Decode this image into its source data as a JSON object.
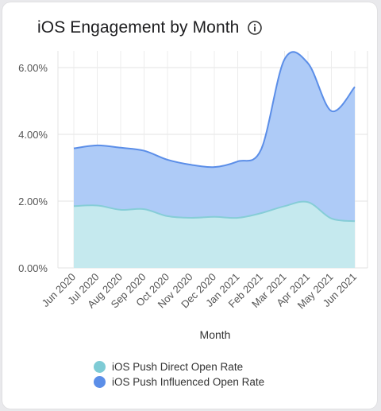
{
  "title": "iOS Engagement by Month",
  "icons": {
    "info": "info-icon"
  },
  "colors": {
    "direct_fill": "#c5e9ee",
    "direct_line": "#86cdd7",
    "influenced_fill": "#aecbf7",
    "influenced_line": "#5b8ee8",
    "legend_direct": "#7ecbd5",
    "legend_influenced": "#5b8ee8"
  },
  "chart_data": {
    "type": "area",
    "xlabel": "Month",
    "ylabel": "",
    "ylim": [
      0,
      6.5
    ],
    "yticks": [
      "0.00%",
      "2.00%",
      "4.00%",
      "6.00%"
    ],
    "ytick_values": [
      0,
      2,
      4,
      6
    ],
    "grid": true,
    "legend_position": "bottom",
    "categories": [
      "Jun 2020",
      "Jul 2020",
      "Aug 2020",
      "Sep 2020",
      "Oct 2020",
      "Nov 2020",
      "Dec 2020",
      "Jan 2021",
      "Feb 2021",
      "Mar 2021",
      "Apr 2021",
      "May 2021",
      "Jun 2021"
    ],
    "series": [
      {
        "name": "iOS Push Direct Open Rate",
        "values": [
          1.85,
          1.87,
          1.74,
          1.76,
          1.55,
          1.5,
          1.53,
          1.5,
          1.64,
          1.85,
          1.97,
          1.48,
          1.4
        ]
      },
      {
        "name": "iOS Push Influenced Open Rate",
        "values": [
          3.58,
          3.67,
          3.6,
          3.51,
          3.24,
          3.09,
          3.02,
          3.19,
          3.55,
          6.25,
          6.13,
          4.7,
          5.42
        ]
      }
    ]
  }
}
